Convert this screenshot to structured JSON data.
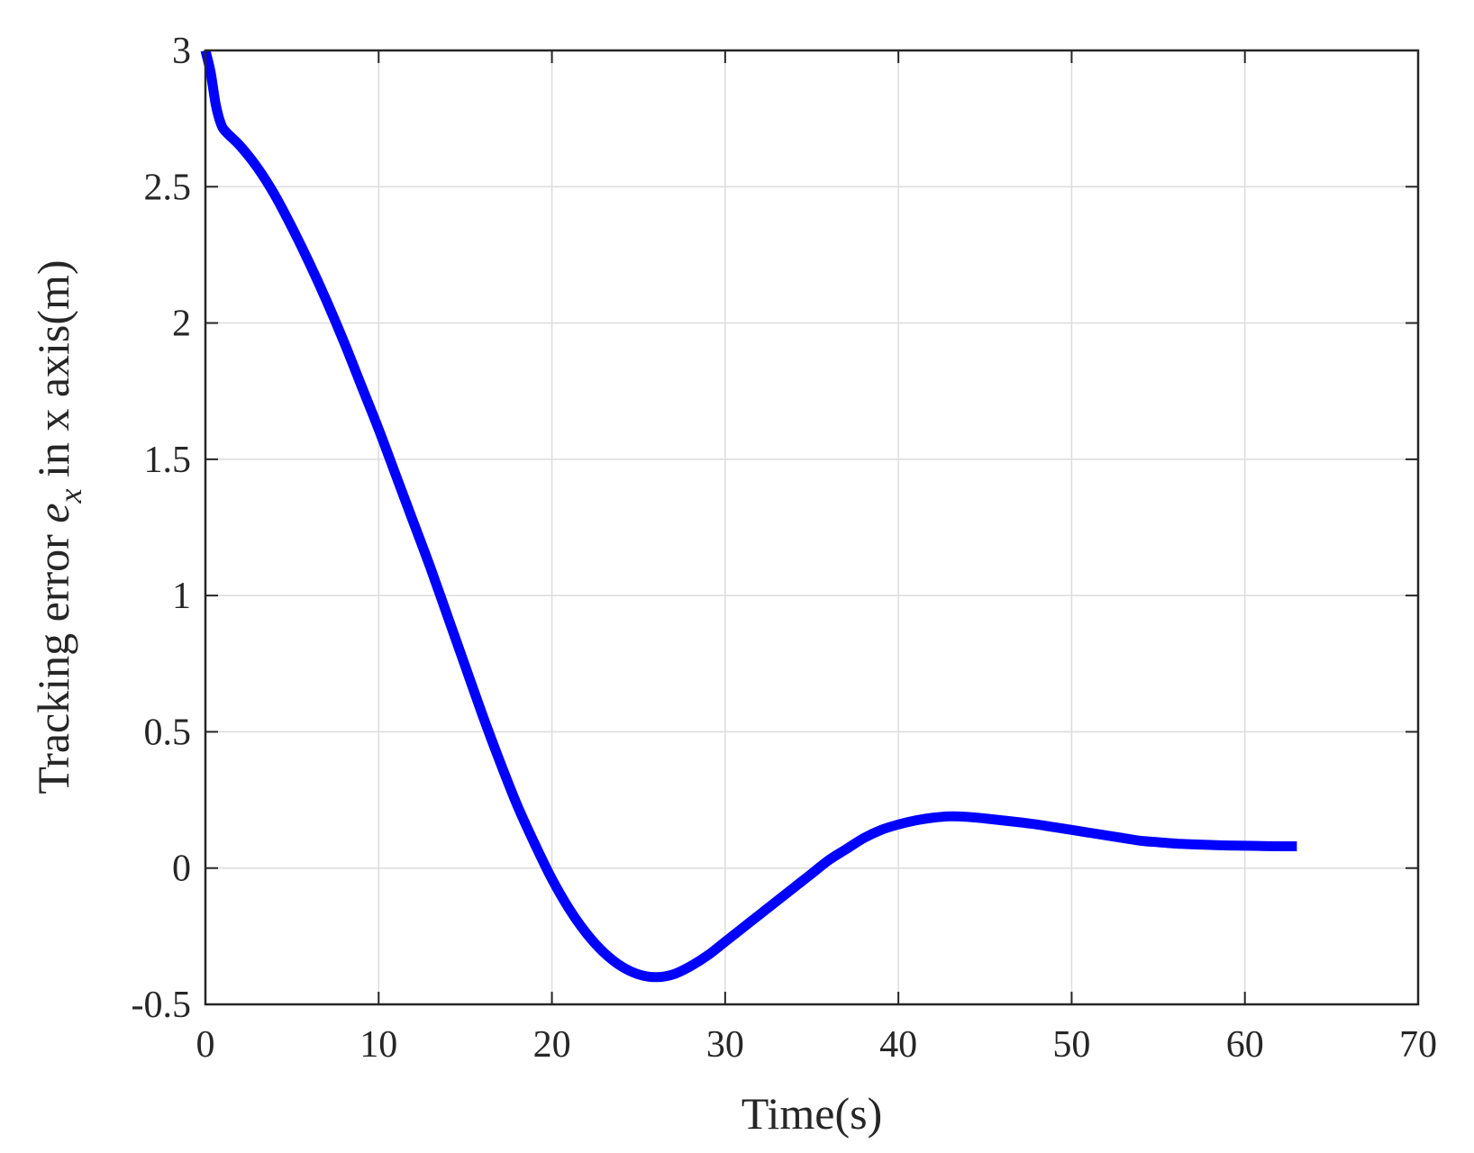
{
  "chart_data": {
    "type": "line",
    "title": "",
    "xlabel": "Time(s)",
    "ylabel": {
      "prefix": "Tracking error ",
      "symbol": "e",
      "subscript": "x",
      "suffix": " in x axis(m)"
    },
    "xlim": [
      0,
      70
    ],
    "ylim": [
      -0.5,
      3
    ],
    "xticks": [
      0,
      10,
      20,
      30,
      40,
      50,
      60,
      70
    ],
    "yticks": [
      -0.5,
      0,
      0.5,
      1,
      1.5,
      2,
      2.5,
      3
    ],
    "xtick_labels": [
      "0",
      "10",
      "20",
      "30",
      "40",
      "50",
      "60",
      "70"
    ],
    "ytick_labels": [
      "-0.5",
      "0",
      "0.5",
      "1",
      "1.5",
      "2",
      "2.5",
      "3"
    ],
    "grid": true,
    "series": [
      {
        "color": "#0000ff",
        "x": [
          0,
          0.3,
          0.6,
          0.9,
          1.2,
          2,
          3,
          4,
          5,
          6,
          7,
          8,
          9,
          10,
          11,
          12,
          13,
          14,
          15,
          16,
          17,
          18,
          19,
          20,
          21,
          22,
          23,
          24,
          25,
          26,
          27,
          28,
          29,
          30,
          31,
          32,
          33,
          34,
          35,
          36,
          37,
          38,
          39,
          40,
          41,
          42,
          43,
          44,
          45,
          46,
          47,
          48,
          49,
          50,
          51,
          52,
          53,
          54,
          55,
          56,
          57,
          58,
          59,
          60,
          61,
          62,
          63
        ],
        "y": [
          3.0,
          2.92,
          2.8,
          2.73,
          2.7,
          2.65,
          2.57,
          2.47,
          2.35,
          2.22,
          2.08,
          1.93,
          1.77,
          1.61,
          1.44,
          1.27,
          1.1,
          0.92,
          0.74,
          0.56,
          0.39,
          0.23,
          0.09,
          -0.04,
          -0.15,
          -0.24,
          -0.31,
          -0.36,
          -0.39,
          -0.4,
          -0.39,
          -0.36,
          -0.32,
          -0.27,
          -0.22,
          -0.17,
          -0.12,
          -0.07,
          -0.02,
          0.03,
          0.07,
          0.11,
          0.14,
          0.16,
          0.175,
          0.185,
          0.19,
          0.188,
          0.182,
          0.175,
          0.168,
          0.16,
          0.15,
          0.14,
          0.13,
          0.12,
          0.11,
          0.1,
          0.095,
          0.09,
          0.087,
          0.085,
          0.083,
          0.082,
          0.081,
          0.08,
          0.08
        ]
      }
    ]
  }
}
